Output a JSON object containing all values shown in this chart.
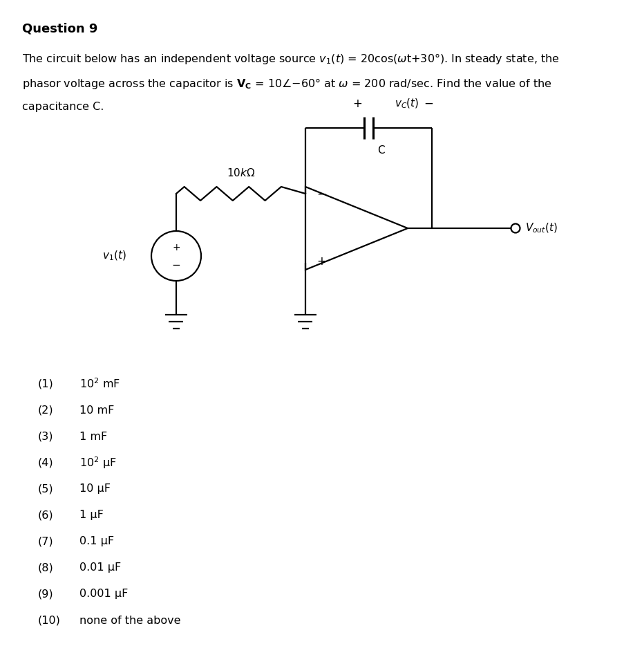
{
  "title": "Question 9",
  "options": [
    [
      "(1)",
      "10$^2$ mF"
    ],
    [
      "(2)",
      "10 mF"
    ],
    [
      "(3)",
      "1 mF"
    ],
    [
      "(4)",
      "10$^2$ μF"
    ],
    [
      "(5)",
      "10 μF"
    ],
    [
      "(6)",
      "1 μF"
    ],
    [
      "(7)",
      "0.1 μF"
    ],
    [
      "(8)",
      "0.01 μF"
    ],
    [
      "(9)",
      "0.001 μF"
    ],
    [
      "(10)",
      "none of the above"
    ]
  ],
  "bg_color": "#ffffff",
  "text_color": "#000000",
  "lw": 1.6,
  "fig_width": 9.04,
  "fig_height": 9.6,
  "dpi": 100
}
